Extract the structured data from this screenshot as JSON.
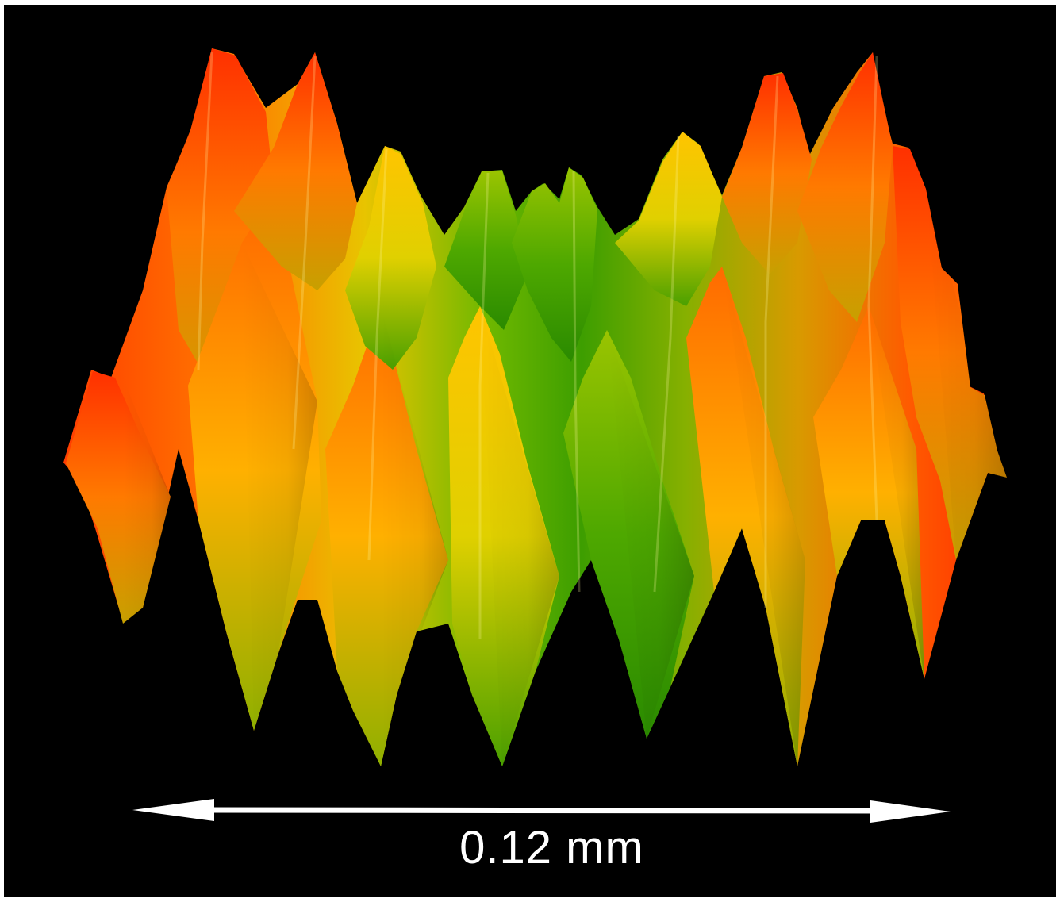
{
  "scale_bar": {
    "label": "0.12 mm",
    "color": "#ffffff"
  },
  "surface": {
    "description_colors": {
      "high": "#ff3a00",
      "mid": "#ffb000",
      "low": "#2e9a00"
    },
    "background": "#000000"
  }
}
